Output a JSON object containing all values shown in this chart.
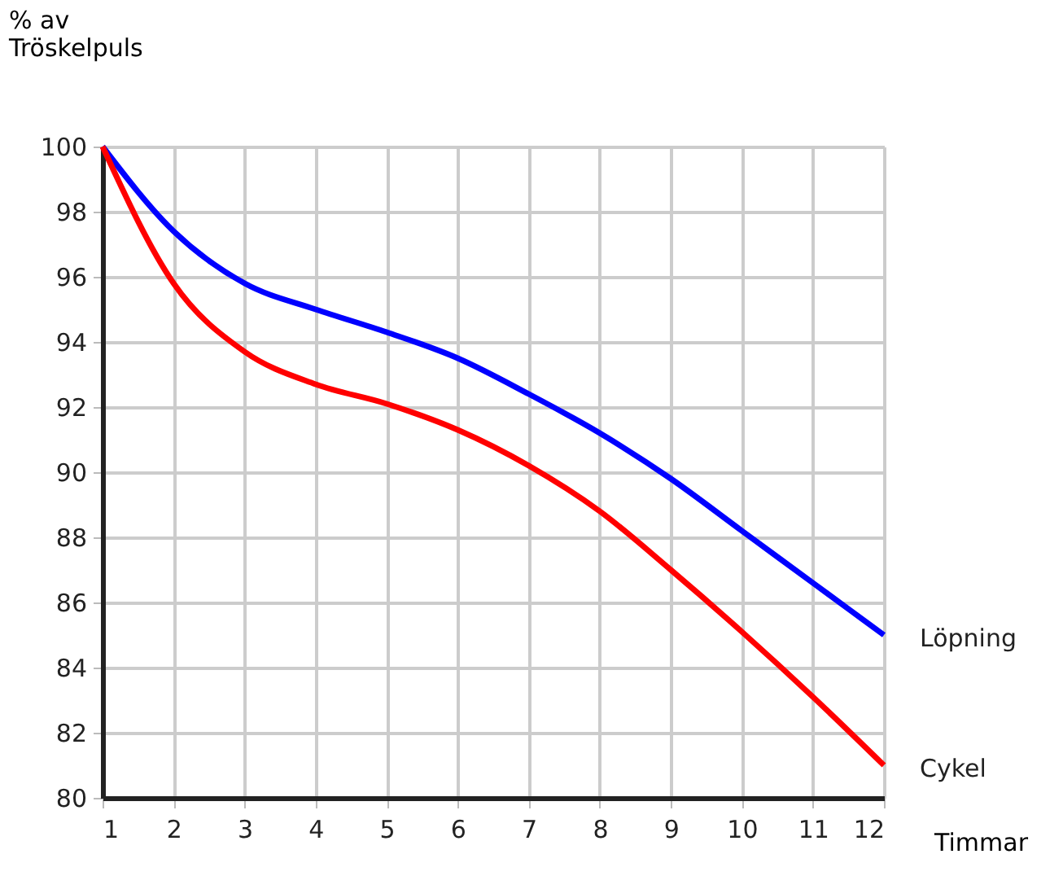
{
  "chart_data": {
    "type": "line",
    "ylabel": "% av Tröskelpuls",
    "xlabel": "Timmar",
    "x": [
      1,
      2,
      3,
      4,
      5,
      6,
      7,
      8,
      9,
      10,
      11,
      12
    ],
    "series": [
      {
        "name": "Löpning",
        "color": "#0000ff",
        "values": [
          100,
          97.4,
          95.8,
          95.0,
          94.3,
          93.5,
          92.4,
          91.2,
          89.8,
          88.2,
          86.6,
          85.0
        ]
      },
      {
        "name": "Cykel",
        "color": "#ff0000",
        "values": [
          100,
          95.8,
          93.7,
          92.7,
          92.1,
          91.3,
          90.2,
          88.8,
          87.0,
          85.1,
          83.1,
          81.0
        ]
      }
    ],
    "xlim": [
      1,
      12
    ],
    "xticks": [
      1,
      2,
      3,
      4,
      5,
      6,
      7,
      8,
      9,
      10,
      11,
      12
    ],
    "ylim": [
      80,
      100
    ],
    "yticks": [
      80,
      82,
      84,
      86,
      88,
      90,
      92,
      94,
      96,
      98,
      100
    ],
    "grid": true,
    "legend": false,
    "marker": "none",
    "line_style": "solid"
  }
}
